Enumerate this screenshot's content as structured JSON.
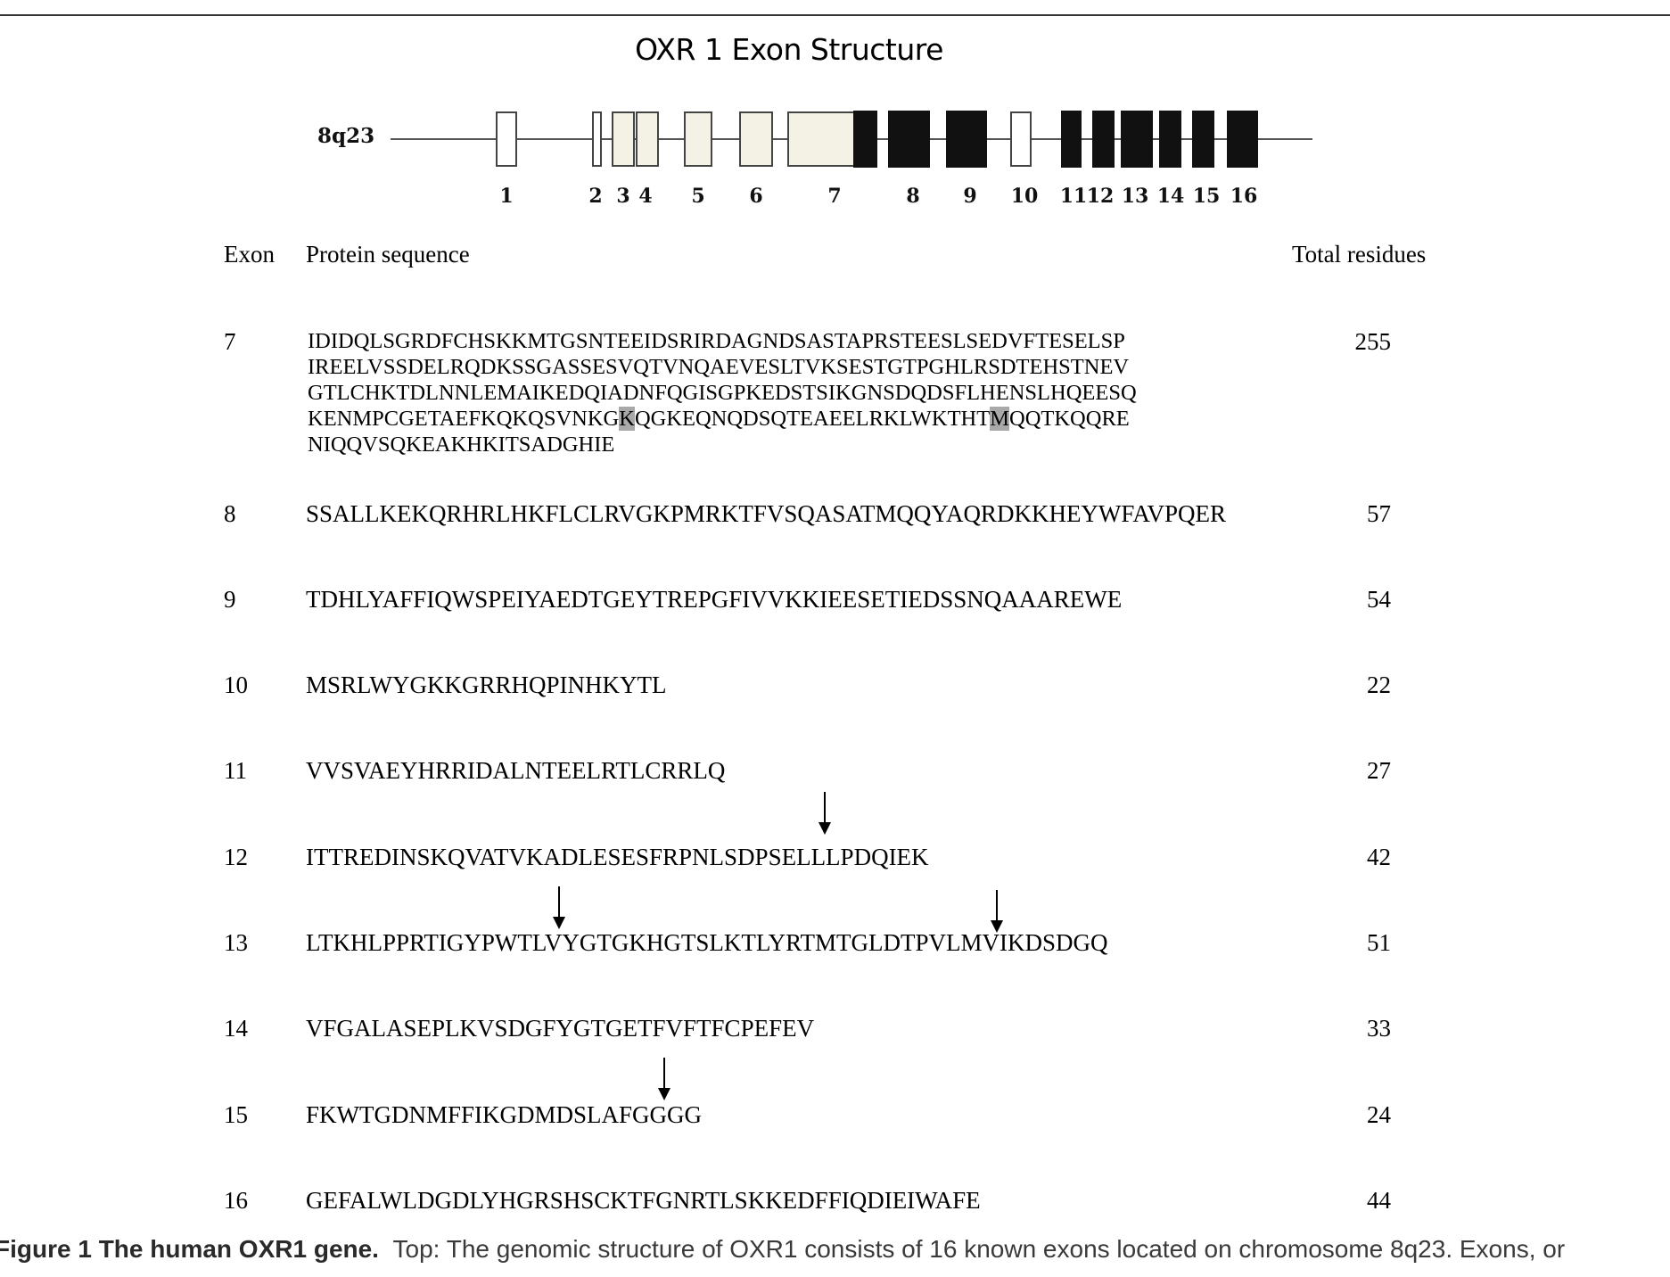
{
  "diagram": {
    "title": "OXR 1 Exon Structure",
    "locus": "8q23",
    "exon_labels": [
      "1",
      "2",
      "3",
      "4",
      "5",
      "6",
      "7",
      "8",
      "9",
      "10",
      "11",
      "12",
      "13",
      "14",
      "15",
      "16"
    ]
  },
  "table": {
    "headers": {
      "exon": "Exon",
      "sequence": "Protein sequence",
      "total": "Total residues"
    },
    "rows": [
      {
        "exon": "7",
        "total": "255",
        "lines": [
          "IDIDQLSGRDFCHSKKMTGSNTEEIDSRIRDAGNDSASTAPRSTEESLSEDVFTESELSP",
          "IREELVSSDELRQDKSSGASSESVQTVNQAEVESLTVKSESTGTPGHLRSDTEHSTNEV",
          "GTLCHKTDLNNLEMAIKEDQIADNFQGISGPKEDSTSIKGNSDQDSFLHENSLHQEESQ",
          [
            "KENMPCGETAEFKQKQSVNKG",
            "K",
            "QGKEQNQDSQTEAEELRKLWKTHT",
            "M",
            "QQTKQQRE"
          ],
          "NIQQVSQKEAKHKITSADGHIE"
        ]
      },
      {
        "exon": "8",
        "total": "57",
        "sequence": "SSALLKEKQRHRLHKFLCLRVGKPMRKTFVSQASATMQQYAQRDKKHEYWFAVPQER"
      },
      {
        "exon": "9",
        "total": "54",
        "sequence": "TDHLYAFFIQWSPEIYAEDTGEYTREPGFIVVKKIEESETIEDSSNQAAAREWE"
      },
      {
        "exon": "10",
        "total": "22",
        "sequence": "MSRLWYGKKGRRHQPINHKYTL"
      },
      {
        "exon": "11",
        "total": "27",
        "sequence": "VVSVAEYHRRIDALNTEELRTLCRRLQ"
      },
      {
        "exon": "12",
        "total": "42",
        "sequence": "ITTREDINSKQVATVKADLESESFRPNLSDPSELLLPDQIEK"
      },
      {
        "exon": "13",
        "total": "51",
        "sequence": "LTKHLPPRTIGYPWTLVYGTGKHGTSLKTLYRTMTGLDTPVLMVIKDSDGQ"
      },
      {
        "exon": "14",
        "total": "33",
        "sequence": "VFGALASEPLKVSDGFYGTGETFVFTFCPEFEV"
      },
      {
        "exon": "15",
        "total": "24",
        "sequence": "FKWTGDNMFFIKGDMDSLAFGGGG"
      },
      {
        "exon": "16",
        "total": "44",
        "sequence": "GEFALWLDGDLYHGRSHSCKTFGNRTLSKKEDFFIQDIEIWAFE"
      }
    ]
  },
  "caption": {
    "label": "Figure 1 The human OXR1 gene.",
    "text": "Top: The genomic structure of OXR1 consists of 16 known exons located on chromosome 8q23. Exons, or"
  },
  "colors": {
    "coding_exon": "#111111",
    "cream_exon": "#f3f2e4",
    "outline": "#555555"
  }
}
